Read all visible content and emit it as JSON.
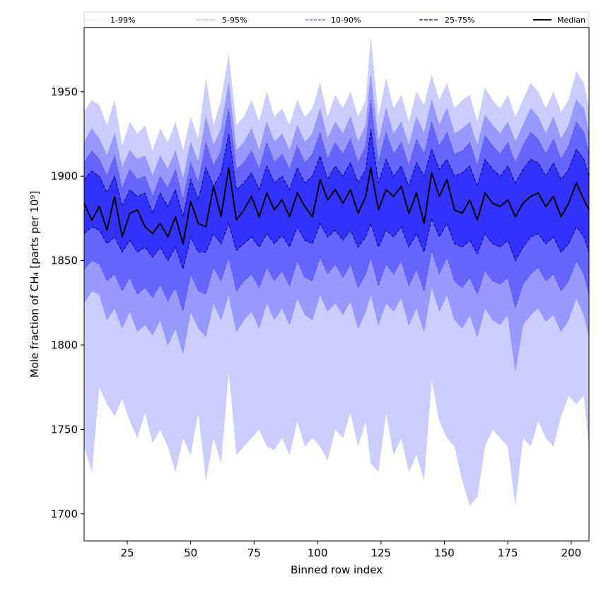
{
  "chart_data": {
    "type": "area",
    "xlabel": "Binned row index",
    "ylabel": "Mole fraction of CH₄ [parts per 10⁹]",
    "xlim": [
      8,
      207
    ],
    "ylim": [
      1684,
      1988
    ],
    "xticks": [
      25,
      50,
      75,
      100,
      125,
      150,
      175,
      200
    ],
    "yticks": [
      1700,
      1750,
      1800,
      1850,
      1900,
      1950
    ],
    "legend_position": "top",
    "x": [
      8,
      11,
      14,
      17,
      20,
      23,
      26,
      29,
      32,
      35,
      38,
      41,
      44,
      47,
      50,
      53,
      56,
      59,
      62,
      65,
      68,
      71,
      74,
      77,
      80,
      83,
      86,
      89,
      92,
      95,
      98,
      101,
      104,
      107,
      110,
      113,
      116,
      119,
      121,
      124,
      127,
      130,
      133,
      136,
      139,
      142,
      145,
      148,
      151,
      154,
      157,
      160,
      163,
      166,
      169,
      172,
      175,
      178,
      181,
      184,
      187,
      190,
      193,
      196,
      199,
      202,
      205,
      207
    ],
    "series": [
      {
        "name": "Median",
        "values": [
          1884,
          1874,
          1882,
          1868,
          1888,
          1864,
          1878,
          1880,
          1870,
          1866,
          1872,
          1864,
          1876,
          1860,
          1885,
          1872,
          1870,
          1894,
          1876,
          1905,
          1874,
          1880,
          1888,
          1876,
          1890,
          1880,
          1886,
          1876,
          1890,
          1882,
          1876,
          1898,
          1886,
          1892,
          1884,
          1892,
          1878,
          1888,
          1905,
          1880,
          1892,
          1888,
          1894,
          1878,
          1890,
          1872,
          1902,
          1888,
          1898,
          1880,
          1878,
          1886,
          1874,
          1890,
          1884,
          1882,
          1886,
          1876,
          1884,
          1888,
          1890,
          1882,
          1888,
          1876,
          1884,
          1896,
          1886,
          1880
        ]
      }
    ],
    "bands": [
      {
        "name": "1-99%",
        "color": "#ccccff",
        "lower": [
          1740,
          1725,
          1775,
          1765,
          1758,
          1768,
          1755,
          1745,
          1760,
          1742,
          1750,
          1740,
          1725,
          1745,
          1735,
          1760,
          1720,
          1745,
          1730,
          1785,
          1735,
          1740,
          1745,
          1750,
          1740,
          1738,
          1745,
          1735,
          1755,
          1740,
          1745,
          1740,
          1732,
          1750,
          1745,
          1760,
          1740,
          1755,
          1730,
          1725,
          1760,
          1735,
          1745,
          1725,
          1735,
          1720,
          1780,
          1755,
          1745,
          1740,
          1720,
          1705,
          1710,
          1740,
          1750,
          1745,
          1740,
          1705,
          1745,
          1740,
          1755,
          1745,
          1740,
          1758,
          1770,
          1765,
          1770,
          1740
        ],
        "upper": [
          1938,
          1945,
          1942,
          1930,
          1945,
          1918,
          1932,
          1925,
          1930,
          1915,
          1928,
          1920,
          1932,
          1915,
          1935,
          1922,
          1958,
          1930,
          1945,
          1972,
          1930,
          1935,
          1945,
          1932,
          1950,
          1935,
          1940,
          1930,
          1945,
          1935,
          1940,
          1955,
          1935,
          1948,
          1940,
          1950,
          1935,
          1945,
          1982,
          1935,
          1958,
          1940,
          1948,
          1932,
          1950,
          1942,
          1960,
          1945,
          1955,
          1940,
          1945,
          1948,
          1932,
          1952,
          1945,
          1940,
          1948,
          1935,
          1945,
          1955,
          1950,
          1940,
          1950,
          1938,
          1945,
          1962,
          1955,
          1940
        ]
      },
      {
        "name": "5-95%",
        "color": "#9999ff",
        "lower": [
          1825,
          1832,
          1830,
          1815,
          1822,
          1810,
          1820,
          1808,
          1812,
          1806,
          1815,
          1800,
          1810,
          1795,
          1820,
          1810,
          1805,
          1825,
          1815,
          1830,
          1808,
          1815,
          1820,
          1810,
          1825,
          1815,
          1822,
          1812,
          1828,
          1818,
          1815,
          1830,
          1820,
          1825,
          1818,
          1826,
          1810,
          1820,
          1830,
          1812,
          1825,
          1820,
          1828,
          1812,
          1822,
          1808,
          1835,
          1820,
          1830,
          1815,
          1810,
          1818,
          1805,
          1822,
          1815,
          1812,
          1818,
          1785,
          1812,
          1818,
          1822,
          1814,
          1818,
          1808,
          1815,
          1828,
          1818,
          1805
        ],
        "upper": [
          1920,
          1928,
          1922,
          1912,
          1925,
          1905,
          1915,
          1910,
          1912,
          1900,
          1912,
          1904,
          1915,
          1898,
          1920,
          1908,
          1935,
          1918,
          1928,
          1955,
          1915,
          1920,
          1928,
          1915,
          1932,
          1920,
          1925,
          1915,
          1930,
          1920,
          1925,
          1940,
          1922,
          1932,
          1925,
          1935,
          1920,
          1930,
          1960,
          1920,
          1940,
          1925,
          1932,
          1918,
          1935,
          1925,
          1945,
          1930,
          1940,
          1925,
          1928,
          1932,
          1918,
          1936,
          1930,
          1925,
          1932,
          1920,
          1930,
          1940,
          1935,
          1925,
          1935,
          1922,
          1930,
          1945,
          1940,
          1925
        ]
      },
      {
        "name": "10-90%",
        "color": "#6666ff",
        "lower": [
          1845,
          1850,
          1848,
          1838,
          1842,
          1832,
          1840,
          1830,
          1834,
          1828,
          1836,
          1826,
          1834,
          1820,
          1842,
          1832,
          1830,
          1846,
          1838,
          1852,
          1832,
          1838,
          1842,
          1834,
          1846,
          1838,
          1844,
          1835,
          1850,
          1840,
          1838,
          1852,
          1842,
          1848,
          1840,
          1848,
          1834,
          1842,
          1852,
          1835,
          1848,
          1842,
          1850,
          1835,
          1845,
          1832,
          1856,
          1842,
          1852,
          1838,
          1834,
          1840,
          1830,
          1844,
          1838,
          1836,
          1840,
          1822,
          1836,
          1842,
          1846,
          1838,
          1842,
          1832,
          1838,
          1850,
          1842,
          1830
        ],
        "upper": [
          1908,
          1915,
          1910,
          1900,
          1912,
          1893,
          1904,
          1898,
          1900,
          1888,
          1900,
          1893,
          1904,
          1886,
          1908,
          1896,
          1920,
          1906,
          1915,
          1940,
          1904,
          1908,
          1915,
          1904,
          1920,
          1908,
          1913,
          1904,
          1918,
          1908,
          1913,
          1926,
          1910,
          1920,
          1913,
          1922,
          1908,
          1918,
          1945,
          1908,
          1926,
          1913,
          1920,
          1906,
          1922,
          1913,
          1932,
          1918,
          1926,
          1913,
          1915,
          1920,
          1906,
          1924,
          1918,
          1913,
          1920,
          1908,
          1918,
          1926,
          1922,
          1913,
          1922,
          1910,
          1918,
          1932,
          1926,
          1913
        ]
      },
      {
        "name": "25-75%",
        "color": "#3333ff",
        "lower": [
          1866,
          1870,
          1868,
          1860,
          1864,
          1855,
          1862,
          1855,
          1858,
          1852,
          1858,
          1850,
          1858,
          1845,
          1864,
          1855,
          1855,
          1866,
          1860,
          1872,
          1856,
          1860,
          1864,
          1858,
          1866,
          1860,
          1865,
          1858,
          1870,
          1862,
          1860,
          1872,
          1864,
          1868,
          1862,
          1868,
          1858,
          1864,
          1872,
          1858,
          1868,
          1864,
          1870,
          1858,
          1866,
          1855,
          1875,
          1864,
          1872,
          1860,
          1858,
          1862,
          1854,
          1866,
          1860,
          1858,
          1862,
          1850,
          1858,
          1864,
          1866,
          1860,
          1864,
          1855,
          1860,
          1870,
          1864,
          1855
        ],
        "upper": [
          1898,
          1903,
          1900,
          1890,
          1900,
          1882,
          1892,
          1888,
          1890,
          1878,
          1890,
          1882,
          1892,
          1876,
          1898,
          1886,
          1905,
          1894,
          1902,
          1925,
          1892,
          1896,
          1902,
          1892,
          1906,
          1896,
          1900,
          1892,
          1905,
          1896,
          1900,
          1912,
          1898,
          1906,
          1900,
          1908,
          1896,
          1904,
          1928,
          1896,
          1910,
          1900,
          1906,
          1894,
          1908,
          1900,
          1916,
          1904,
          1910,
          1900,
          1902,
          1906,
          1894,
          1910,
          1904,
          1900,
          1906,
          1896,
          1904,
          1910,
          1908,
          1900,
          1908,
          1898,
          1904,
          1916,
          1910,
          1900
        ]
      }
    ]
  }
}
